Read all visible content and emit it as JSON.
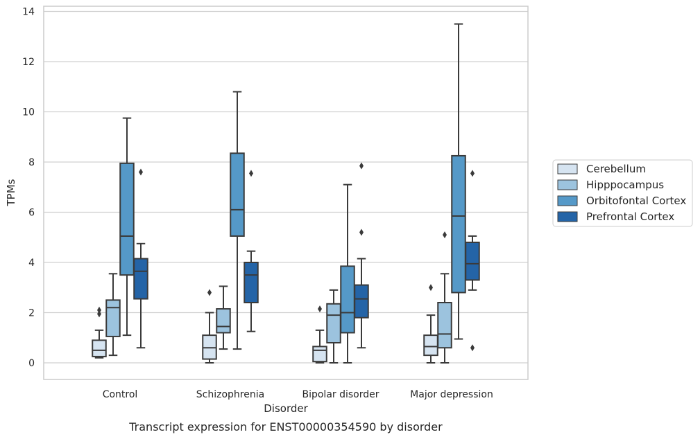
{
  "caption": "Transcript expression for ENST00000354590 by disorder",
  "chart_data": {
    "type": "box",
    "xlabel": "Disorder",
    "ylabel": "TPMs",
    "ylim": [
      -0.65,
      14.2
    ],
    "yticks": [
      0,
      2,
      4,
      6,
      8,
      10,
      12,
      14
    ],
    "grid": "horizontal",
    "legend_position": "right",
    "categories": [
      "Control",
      "Schizophrenia",
      "Bipolar disorder",
      "Major depression"
    ],
    "series": [
      {
        "name": "Cerebellum",
        "color": "#d6e4f1",
        "boxes": [
          {
            "whisker_low": 0.2,
            "q1": 0.25,
            "median": 0.5,
            "q3": 0.9,
            "whisker_high": 1.3,
            "outliers": [
              1.95,
              2.1
            ]
          },
          {
            "whisker_low": 0.0,
            "q1": 0.15,
            "median": 0.6,
            "q3": 1.1,
            "whisker_high": 2.0,
            "outliers": [
              2.8
            ]
          },
          {
            "whisker_low": 0.0,
            "q1": 0.05,
            "median": 0.5,
            "q3": 0.65,
            "whisker_high": 1.3,
            "outliers": [
              2.15
            ]
          },
          {
            "whisker_low": 0.0,
            "q1": 0.3,
            "median": 0.65,
            "q3": 1.1,
            "whisker_high": 1.9,
            "outliers": [
              3.0
            ]
          }
        ]
      },
      {
        "name": "Hipppocampus",
        "color": "#9cc3de",
        "boxes": [
          {
            "whisker_low": 0.3,
            "q1": 1.05,
            "median": 2.2,
            "q3": 2.5,
            "whisker_high": 3.55,
            "outliers": []
          },
          {
            "whisker_low": 0.55,
            "q1": 1.2,
            "median": 1.45,
            "q3": 2.15,
            "whisker_high": 3.05,
            "outliers": []
          },
          {
            "whisker_low": 0.0,
            "q1": 0.8,
            "median": 1.9,
            "q3": 2.35,
            "whisker_high": 2.9,
            "outliers": []
          },
          {
            "whisker_low": 0.0,
            "q1": 0.6,
            "median": 1.15,
            "q3": 2.4,
            "whisker_high": 3.55,
            "outliers": [
              5.1
            ]
          }
        ]
      },
      {
        "name": "Orbitofontal Cortex",
        "color": "#5599c8",
        "boxes": [
          {
            "whisker_low": 1.1,
            "q1": 3.5,
            "median": 5.05,
            "q3": 7.95,
            "whisker_high": 9.75,
            "outliers": []
          },
          {
            "whisker_low": 0.55,
            "q1": 5.05,
            "median": 6.1,
            "q3": 8.35,
            "whisker_high": 10.8,
            "outliers": []
          },
          {
            "whisker_low": 0.0,
            "q1": 1.2,
            "median": 2.0,
            "q3": 3.85,
            "whisker_high": 7.1,
            "outliers": []
          },
          {
            "whisker_low": 0.95,
            "q1": 2.8,
            "median": 5.85,
            "q3": 8.25,
            "whisker_high": 13.5,
            "outliers": []
          }
        ]
      },
      {
        "name": "Prefrontal Cortex",
        "color": "#2464a7",
        "boxes": [
          {
            "whisker_low": 0.6,
            "q1": 2.55,
            "median": 3.65,
            "q3": 4.15,
            "whisker_high": 4.75,
            "outliers": [
              7.6
            ]
          },
          {
            "whisker_low": 1.25,
            "q1": 2.4,
            "median": 3.5,
            "q3": 4.0,
            "whisker_high": 4.45,
            "outliers": [
              7.55
            ]
          },
          {
            "whisker_low": 0.6,
            "q1": 1.8,
            "median": 2.55,
            "q3": 3.1,
            "whisker_high": 4.15,
            "outliers": [
              5.2,
              7.85
            ]
          },
          {
            "whisker_low": 2.9,
            "q1": 3.3,
            "median": 3.95,
            "q3": 4.8,
            "whisker_high": 5.05,
            "outliers": [
              0.6,
              7.55
            ]
          }
        ]
      }
    ]
  }
}
